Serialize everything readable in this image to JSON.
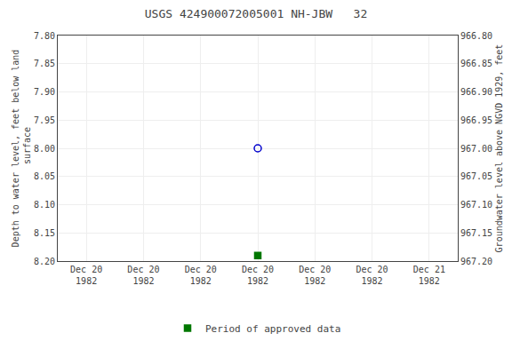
{
  "chart_data": {
    "type": "scatter",
    "title": "USGS 424900072005001 NH-JBW   32",
    "ylabel": "Depth to water level, feet below land\n surface",
    "y2label": "Groundwater level above NGVD 1929, feet",
    "categories": [
      "Dec 20\n1982",
      "Dec 20\n1982",
      "Dec 20\n1982",
      "Dec 20\n1982",
      "Dec 20\n1982",
      "Dec 20\n1982",
      "Dec 21\n1982"
    ],
    "series": [
      {
        "color": "#0000cc",
        "marker": "open_circle",
        "values": [
          null,
          null,
          null,
          8.0,
          null,
          null,
          null
        ]
      },
      {
        "name": "Period of approved data",
        "color": "#007700",
        "marker": "square",
        "values": [
          null,
          null,
          null,
          8.19,
          null,
          null,
          null
        ]
      }
    ],
    "ylim": [
      8.2,
      7.8
    ],
    "yticks": [
      {
        "value": 7.8,
        "label": "7.80"
      },
      7.85,
      {
        "value": 7.9,
        "label": "7.90"
      },
      7.95,
      {
        "value": 8.0,
        "label": "8.00"
      },
      8.05,
      {
        "value": 8.1,
        "label": "8.10"
      },
      8.15,
      {
        "value": 8.2,
        "label": "8.20"
      }
    ],
    "y2lim": [
      967.2,
      966.8
    ],
    "y2ticks": [
      {
        "value": 967.2,
        "label": "967.20"
      },
      967.15,
      {
        "value": 967.1,
        "label": "967.10"
      },
      967.05,
      {
        "value": 967.0,
        "label": "967.00"
      },
      966.95,
      {
        "value": 966.9,
        "label": "966.90"
      },
      966.85,
      {
        "value": 966.8,
        "label": "966.80"
      }
    ],
    "grid": true,
    "legend": "bottom"
  }
}
